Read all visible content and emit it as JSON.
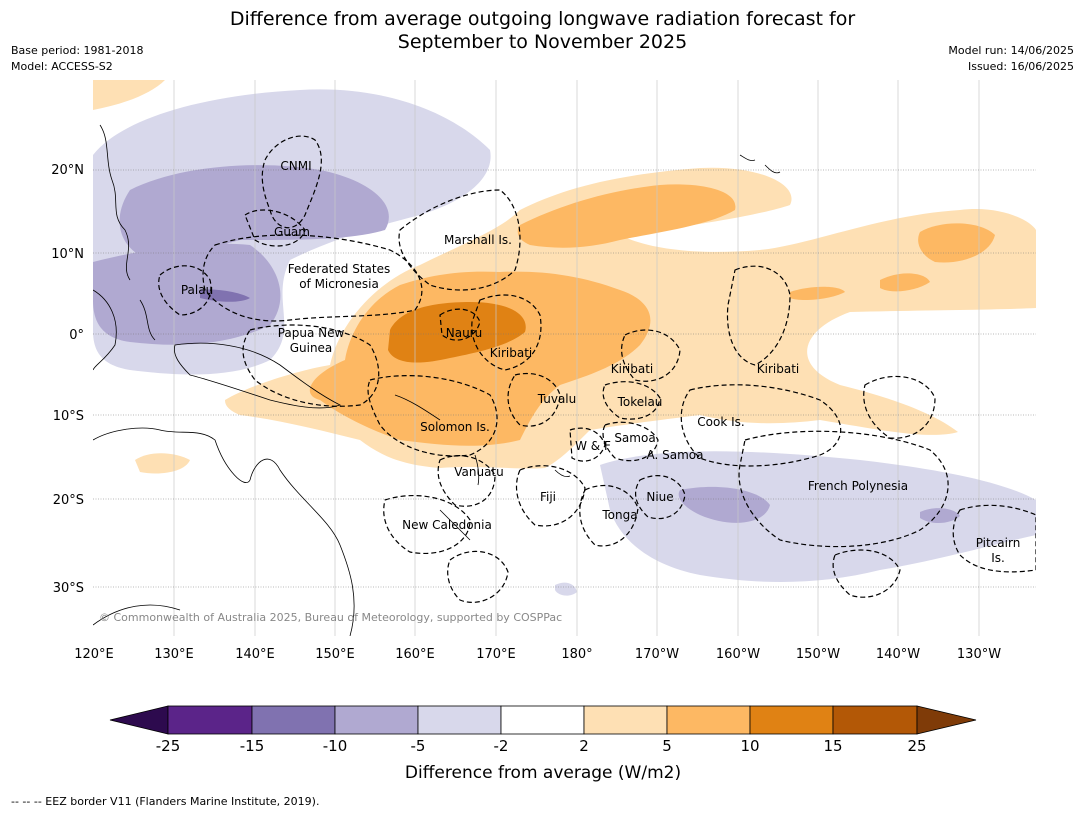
{
  "header": {
    "title_line1": "Difference from average outgoing longwave radiation forecast for",
    "title_line2": "September to November 2025",
    "base_period": "Base period: 1981-2018",
    "model": "Model: ACCESS-S2",
    "model_run": "Model run: 14/06/2025",
    "issued": "Issued: 16/06/2025"
  },
  "map": {
    "lon_labels": [
      "120°E",
      "130°E",
      "140°E",
      "150°E",
      "160°E",
      "170°E",
      "180°",
      "170°W",
      "160°W",
      "150°W",
      "140°W",
      "130°W"
    ],
    "lat_labels": [
      "20°N",
      "10°N",
      "0°",
      "10°S",
      "20°S",
      "30°S"
    ],
    "copyright": "© Commonwealth of Australia 2025, Bureau of Meteorology, supported by COSPPac",
    "regions": [
      {
        "name": "CNMI",
        "line2": ""
      },
      {
        "name": "Guam",
        "line2": ""
      },
      {
        "name": "Marshall Is.",
        "line2": ""
      },
      {
        "name": "Federated States",
        "line2": "of Micronesia"
      },
      {
        "name": "Palau",
        "line2": ""
      },
      {
        "name": "Papua New",
        "line2": "Guinea"
      },
      {
        "name": "Nauru",
        "line2": ""
      },
      {
        "name": "Kiribati",
        "line2": ""
      },
      {
        "name": "Kiribati",
        "line2": ""
      },
      {
        "name": "Kiribati",
        "line2": ""
      },
      {
        "name": "Tuvalu",
        "line2": ""
      },
      {
        "name": "Tokelau",
        "line2": ""
      },
      {
        "name": "Cook Is.",
        "line2": ""
      },
      {
        "name": "Solomon Is.",
        "line2": ""
      },
      {
        "name": "W & F",
        "line2": ""
      },
      {
        "name": "Samoa",
        "line2": ""
      },
      {
        "name": "A. Samoa",
        "line2": ""
      },
      {
        "name": "Vanuatu",
        "line2": ""
      },
      {
        "name": "Fiji",
        "line2": ""
      },
      {
        "name": "Niue",
        "line2": ""
      },
      {
        "name": "Tonga",
        "line2": ""
      },
      {
        "name": "French Polynesia",
        "line2": ""
      },
      {
        "name": "New Caledonia",
        "line2": ""
      },
      {
        "name": "Pitcairn",
        "line2": "Is."
      }
    ]
  },
  "colorbar": {
    "ticks": [
      "-25",
      "-15",
      "-10",
      "-5",
      "-2",
      "2",
      "5",
      "10",
      "15",
      "25"
    ],
    "colors": [
      "#2d0a4e",
      "#5b2489",
      "#8072b0",
      "#b0a9d1",
      "#d8d8eb",
      "#ffffff",
      "#fee0b4",
      "#fdb863",
      "#e08214",
      "#b35806",
      "#7f3b08"
    ],
    "label": "Difference from average (W/m2)"
  },
  "footer": {
    "eez_note": "--  --  -- EEZ border V11 (Flanders Marine Institute, 2019)."
  }
}
